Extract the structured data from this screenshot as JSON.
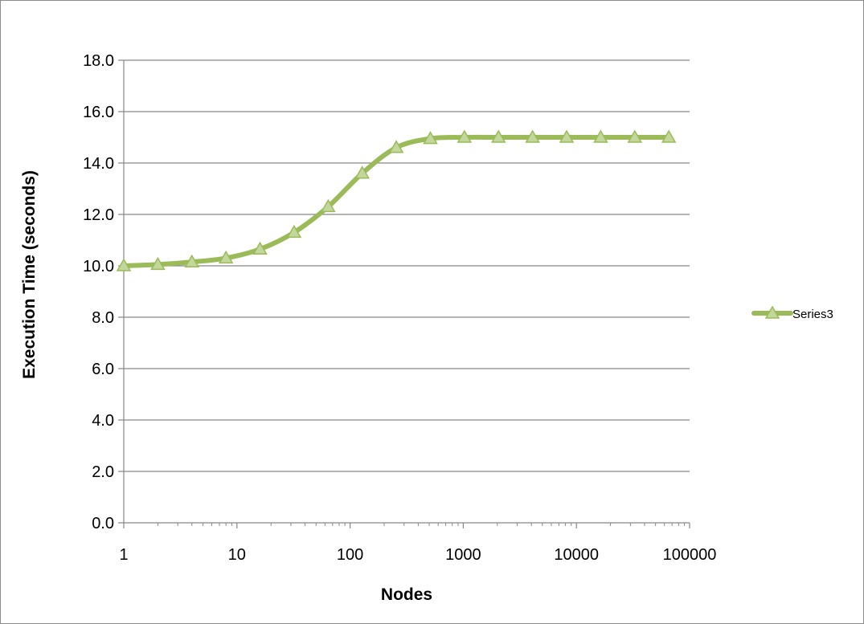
{
  "chart_data": {
    "type": "line",
    "title": "",
    "xlabel": "Nodes",
    "ylabel": "Execution Time (seconds)",
    "x_scale": "log",
    "xlim": [
      1,
      100000
    ],
    "ylim": [
      0,
      18
    ],
    "x_ticks": [
      "1",
      "10",
      "100",
      "1000",
      "10000",
      "100000"
    ],
    "y_ticks": [
      "0.0",
      "2.0",
      "4.0",
      "6.0",
      "8.0",
      "10.0",
      "12.0",
      "14.0",
      "16.0",
      "18.0"
    ],
    "grid": true,
    "legend_position": "right",
    "series": [
      {
        "name": "Series3",
        "color": "#9bbb59",
        "marker": "triangle",
        "smooth": true,
        "x": [
          1,
          2,
          4,
          8,
          16,
          32,
          64,
          128,
          256,
          512,
          1024,
          2048,
          4096,
          8192,
          16384,
          32768,
          65536
        ],
        "y": [
          10.0,
          10.05,
          10.15,
          10.3,
          10.65,
          11.3,
          12.3,
          13.6,
          14.6,
          14.95,
          15.0,
          15.0,
          15.0,
          15.0,
          15.0,
          15.0,
          15.0
        ]
      }
    ]
  }
}
